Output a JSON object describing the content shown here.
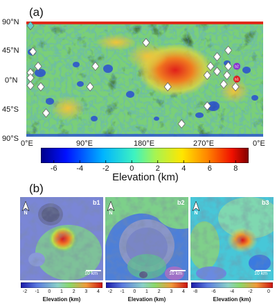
{
  "panel_a": {
    "label": "(a)",
    "lat_labels": [
      "90°N",
      "45°N",
      "0°N",
      "45°S",
      "90°S"
    ],
    "lon_labels": [
      "0°E",
      "90°E",
      "180°E",
      "270°E",
      "0°E"
    ],
    "markers": [
      {
        "lon": 0,
        "lat": 90,
        "color": "#66cccc"
      },
      {
        "lon": 10,
        "lat": 43
      },
      {
        "lon": 5,
        "lat": 10
      },
      {
        "lon": 2,
        "lat": 2
      },
      {
        "lon": 18,
        "lat": 20
      },
      {
        "lon": 5,
        "lat": -10
      },
      {
        "lon": 22,
        "lat": -12
      },
      {
        "lon": 30,
        "lat": -53
      },
      {
        "lon": 105,
        "lat": 20
      },
      {
        "lon": 97,
        "lat": -12
      },
      {
        "lon": 182,
        "lat": 57
      },
      {
        "lon": 215,
        "lat": -12
      },
      {
        "lon": 236,
        "lat": -70
      },
      {
        "lon": 290,
        "lat": 35
      },
      {
        "lon": 307,
        "lat": 45
      },
      {
        "lon": 280,
        "lat": 20
      },
      {
        "lon": 290,
        "lat": 12
      },
      {
        "lon": 275,
        "lat": 6
      },
      {
        "lon": 305,
        "lat": 6
      },
      {
        "lon": 307,
        "lat": 20
      },
      {
        "lon": 318,
        "lat": -12
      },
      {
        "lon": 300,
        "lat": -8
      },
      {
        "lon": 275,
        "lat": -42
      }
    ],
    "highlights": [
      {
        "lon": 320,
        "lat": 20,
        "label": "b2",
        "color": "#8833cc"
      },
      {
        "lon": 320,
        "lat": 0,
        "label": "b1",
        "color": "#dd2222"
      }
    ]
  },
  "colorbar": {
    "ticks": [
      "-6",
      "-4",
      "-2",
      "0",
      "2",
      "4",
      "6",
      "8"
    ],
    "title": "Elevation (km)",
    "range": [
      -7,
      9
    ]
  },
  "panel_b": {
    "label": "(b)",
    "subpanels": [
      {
        "label": "b1",
        "scale": "10 km",
        "colorbar_ticks": [
          "-2",
          "-1",
          "0",
          "1",
          "2",
          "3",
          "4"
        ],
        "colorbar_title": "Elevation (km)"
      },
      {
        "label": "b2",
        "scale": "10 km",
        "colorbar_ticks": [
          "-2",
          "-1",
          "0",
          "1",
          "2",
          "3",
          "4"
        ],
        "colorbar_title": "Elevation (km)"
      },
      {
        "label": "b3",
        "scale": "10 km",
        "colorbar_ticks": [
          "-8",
          "-6",
          "-4",
          "-2",
          "0"
        ],
        "colorbar_title": "Elevation (km)"
      }
    ],
    "north": "N"
  },
  "colors": {
    "scale_low": "#1a1aa8",
    "scale_mid": "#33cc55",
    "scale_high": "#cc1111"
  }
}
